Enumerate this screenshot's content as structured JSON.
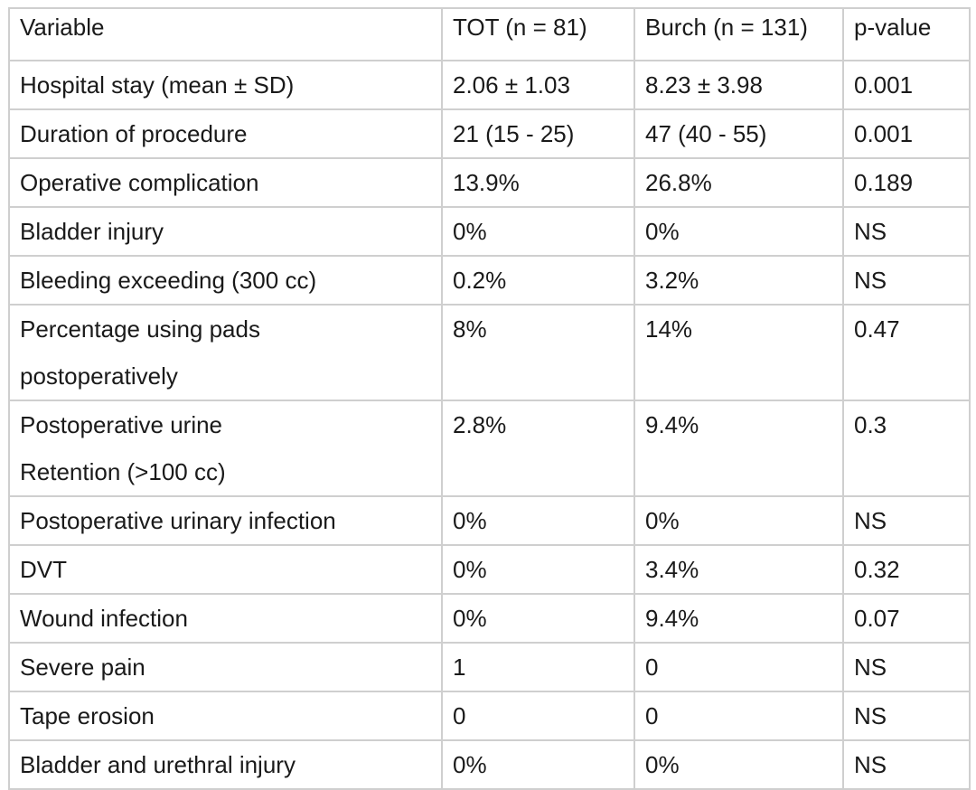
{
  "table": {
    "headers": [
      "Variable",
      "TOT (n = 81)",
      "Burch (n = 131)",
      "p-value"
    ],
    "rows": [
      {
        "variable": [
          "Hospital stay (mean ± SD)"
        ],
        "tot": "2.06 ± 1.03",
        "burch": "8.23 ± 3.98",
        "p": "0.001"
      },
      {
        "variable": [
          "Duration of procedure"
        ],
        "tot": "21 (15 - 25)",
        "burch": "47 (40 - 55)",
        "p": "0.001"
      },
      {
        "variable": [
          "Operative complication"
        ],
        "tot": "13.9%",
        "burch": "26.8%",
        "p": "0.189"
      },
      {
        "variable": [
          "Bladder injury"
        ],
        "tot": "0%",
        "burch": "0%",
        "p": "NS"
      },
      {
        "variable": [
          "Bleeding exceeding (300 cc)"
        ],
        "tot": "0.2%",
        "burch": "3.2%",
        "p": "NS"
      },
      {
        "variable": [
          "Percentage using pads",
          "postoperatively"
        ],
        "tot": "8%",
        "burch": "14%",
        "p": "0.47"
      },
      {
        "variable": [
          "Postoperative urine",
          "Retention (>100 cc)"
        ],
        "tot": "2.8%",
        "burch": "9.4%",
        "p": "0.3"
      },
      {
        "variable": [
          "Postoperative urinary infection"
        ],
        "tot": "0%",
        "burch": "0%",
        "p": "NS"
      },
      {
        "variable": [
          "DVT"
        ],
        "tot": "0%",
        "burch": "3.4%",
        "p": "0.32"
      },
      {
        "variable": [
          "Wound infection"
        ],
        "tot": "0%",
        "burch": "9.4%",
        "p": "0.07"
      },
      {
        "variable": [
          "Severe pain"
        ],
        "tot": "1",
        "burch": "0",
        "p": "NS"
      },
      {
        "variable": [
          "Tape erosion"
        ],
        "tot": "0",
        "burch": "0",
        "p": "NS"
      },
      {
        "variable": [
          "Bladder and urethral injury"
        ],
        "tot": "0%",
        "burch": "0%",
        "p": "NS"
      }
    ]
  }
}
